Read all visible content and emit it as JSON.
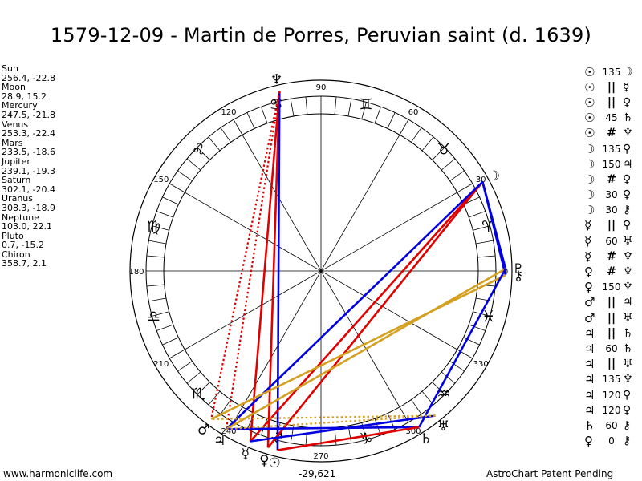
{
  "title": "1579-12-09 - Martin de Porres, Peruvian saint (d. 1639)",
  "planets": [
    {
      "name": "Sun",
      "coords": "256.4, -22.8",
      "glyph": "☉",
      "lon": 256.4
    },
    {
      "name": "Moon",
      "coords": "28.9, 15.2",
      "glyph": "☽",
      "lon": 28.9
    },
    {
      "name": "Mercury",
      "coords": "247.5, -21.8",
      "glyph": "☿",
      "lon": 247.5
    },
    {
      "name": "Venus",
      "coords": "253.3, -22.4",
      "glyph": "♀",
      "lon": 253.3
    },
    {
      "name": "Mars",
      "coords": "233.5, -18.6",
      "glyph": "♂",
      "lon": 233.5
    },
    {
      "name": "Jupiter",
      "coords": "239.1, -19.3",
      "glyph": "♃",
      "lon": 239.1
    },
    {
      "name": "Saturn",
      "coords": "302.1, -20.4",
      "glyph": "♄",
      "lon": 302.1
    },
    {
      "name": "Uranus",
      "coords": "308.3, -18.9",
      "glyph": "♅",
      "lon": 308.3
    },
    {
      "name": "Neptune",
      "coords": "103.0, 22.1",
      "glyph": "♆",
      "lon": 103.0
    },
    {
      "name": "Pluto",
      "coords": "0.7, -15.2",
      "glyph": "♇",
      "lon": 0.7
    },
    {
      "name": "Chiron",
      "coords": "358.7, 2.1",
      "glyph": "⚷",
      "lon": 358.7
    }
  ],
  "aspects": [
    {
      "p1": "☉",
      "sym": "135",
      "p2": "☽"
    },
    {
      "p1": "☉",
      "sym": "||",
      "p2": "☿"
    },
    {
      "p1": "☉",
      "sym": "||",
      "p2": "♀"
    },
    {
      "p1": "☉",
      "sym": "45",
      "p2": "♄"
    },
    {
      "p1": "☉",
      "sym": "#",
      "p2": "♆"
    },
    {
      "p1": "☽",
      "sym": "135",
      "p2": "♀"
    },
    {
      "p1": "☽",
      "sym": "150",
      "p2": "♃"
    },
    {
      "p1": "☽",
      "sym": "#",
      "p2": "♀"
    },
    {
      "p1": "☽",
      "sym": "30",
      "p2": "♀"
    },
    {
      "p1": "☽",
      "sym": "30",
      "p2": "⚷"
    },
    {
      "p1": "☿",
      "sym": "||",
      "p2": "♀"
    },
    {
      "p1": "☿",
      "sym": "60",
      "p2": "♅"
    },
    {
      "p1": "☿",
      "sym": "#",
      "p2": "♆"
    },
    {
      "p1": "♀",
      "sym": "#",
      "p2": "♆"
    },
    {
      "p1": "♀",
      "sym": "150",
      "p2": "♆"
    },
    {
      "p1": "♂",
      "sym": "||",
      "p2": "♃"
    },
    {
      "p1": "♂",
      "sym": "||",
      "p2": "♅"
    },
    {
      "p1": "♃",
      "sym": "||",
      "p2": "♄"
    },
    {
      "p1": "♃",
      "sym": "60",
      "p2": "♄"
    },
    {
      "p1": "♃",
      "sym": "||",
      "p2": "♅"
    },
    {
      "p1": "♃",
      "sym": "135",
      "p2": "♆"
    },
    {
      "p1": "♃",
      "sym": "120",
      "p2": "♀"
    },
    {
      "p1": "♃",
      "sym": "120",
      "p2": "♀"
    },
    {
      "p1": "♄",
      "sym": "60",
      "p2": "⚷"
    },
    {
      "p1": "♀",
      "sym": "0",
      "p2": "⚷"
    }
  ],
  "wheel": {
    "degree_labels": [
      "0",
      "30",
      "60",
      "90",
      "120",
      "150",
      "180",
      "210",
      "240",
      "270",
      "300",
      "330"
    ],
    "degree_values": [
      0,
      30,
      60,
      90,
      120,
      150,
      180,
      210,
      240,
      270,
      300,
      330
    ],
    "signs": [
      {
        "glyph": "♈",
        "mid": 15
      },
      {
        "glyph": "♉",
        "mid": 45
      },
      {
        "glyph": "♊",
        "mid": 75
      },
      {
        "glyph": "♋",
        "mid": 105
      },
      {
        "glyph": "♌",
        "mid": 135
      },
      {
        "glyph": "♍",
        "mid": 165
      },
      {
        "glyph": "♎",
        "mid": 195
      },
      {
        "glyph": "♏",
        "mid": 225
      },
      {
        "glyph": "♐",
        "mid": 255
      },
      {
        "glyph": "♑",
        "mid": 285
      },
      {
        "glyph": "♒",
        "mid": 315
      },
      {
        "glyph": "♓",
        "mid": 345
      }
    ]
  },
  "aspect_lines": [
    {
      "a": 103.0,
      "b": 247.5,
      "color": "#e00000",
      "style": "solid"
    },
    {
      "a": 103.0,
      "b": 253.3,
      "color": "#e00000",
      "style": "solid"
    },
    {
      "a": 103.0,
      "b": 256.4,
      "color": "#0000e0",
      "style": "solid"
    },
    {
      "a": 103.0,
      "b": 239.1,
      "color": "#e00000",
      "style": "dotted"
    },
    {
      "a": 28.9,
      "b": 247.5,
      "color": "#e00000",
      "style": "solid"
    },
    {
      "a": 28.9,
      "b": 253.3,
      "color": "#e00000",
      "style": "solid"
    },
    {
      "a": 28.9,
      "b": 239.1,
      "color": "#0000e0",
      "style": "solid"
    },
    {
      "a": 28.9,
      "b": 0.7,
      "color": "#0000e0",
      "style": "solid"
    },
    {
      "a": 28.9,
      "b": 358.7,
      "color": "#0000e0",
      "style": "solid"
    },
    {
      "a": 0.7,
      "b": 239.1,
      "color": "#d4a020",
      "style": "solid"
    },
    {
      "a": 358.7,
      "b": 233.5,
      "color": "#d4a020",
      "style": "solid"
    },
    {
      "a": 0.7,
      "b": 302.1,
      "color": "#0000e0",
      "style": "solid"
    },
    {
      "a": 308.3,
      "b": 247.5,
      "color": "#0000e0",
      "style": "solid"
    },
    {
      "a": 302.1,
      "b": 239.1,
      "color": "#0000e0",
      "style": "solid"
    },
    {
      "a": 308.3,
      "b": 233.5,
      "color": "#d4a020",
      "style": "dotted"
    },
    {
      "a": 308.3,
      "b": 239.1,
      "color": "#d4a020",
      "style": "dotted"
    },
    {
      "a": 302.1,
      "b": 256.4,
      "color": "#e00000",
      "style": "solid"
    },
    {
      "a": 103.0,
      "b": 233.5,
      "color": "#e00000",
      "style": "dotted"
    }
  ],
  "footer": {
    "site": "www.harmoniclife.com",
    "offset": "-29,621",
    "brand": "AstroChart Patent Pending"
  },
  "colors": {
    "red": "#e00000",
    "blue": "#0000e0",
    "gold": "#d4a020"
  }
}
